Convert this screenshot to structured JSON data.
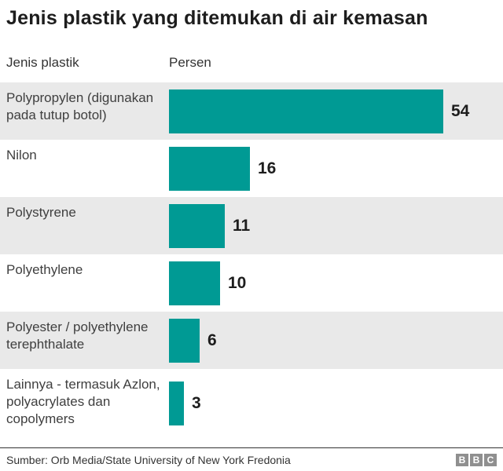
{
  "title": "Jenis plastik yang ditemukan di air kemasan",
  "table_header": {
    "left": "Jenis plastik",
    "right": "Persen"
  },
  "chart_data": {
    "type": "bar",
    "orientation": "horizontal",
    "title": "Jenis plastik yang ditemukan di air kemasan",
    "xlabel": "Persen",
    "ylabel": "Jenis plastik",
    "categories": [
      "Polypropylen (digunakan pada tutup botol)",
      "Nilon",
      "Polystyrene",
      "Polyethylene",
      "Polyester / polyethylene terephthalate",
      "Lainnya - termasuk Azlon, polyacrylates dan copolymers"
    ],
    "values": [
      54,
      16,
      11,
      10,
      6,
      3
    ],
    "xlim": [
      0,
      54
    ],
    "grid": false,
    "legend": false,
    "data_labels": true
  },
  "colors": {
    "bar": "#009A94",
    "row_alt_bg": "#e9e9e9",
    "logo_block_bg": "#8f8f8f",
    "title_text": "#1d1d1d",
    "label_text": "#3f3f3f"
  },
  "footer": {
    "source": "Sumber: Orb Media/State University of New York Fredonia",
    "logo_letters": [
      "B",
      "B",
      "C"
    ]
  }
}
